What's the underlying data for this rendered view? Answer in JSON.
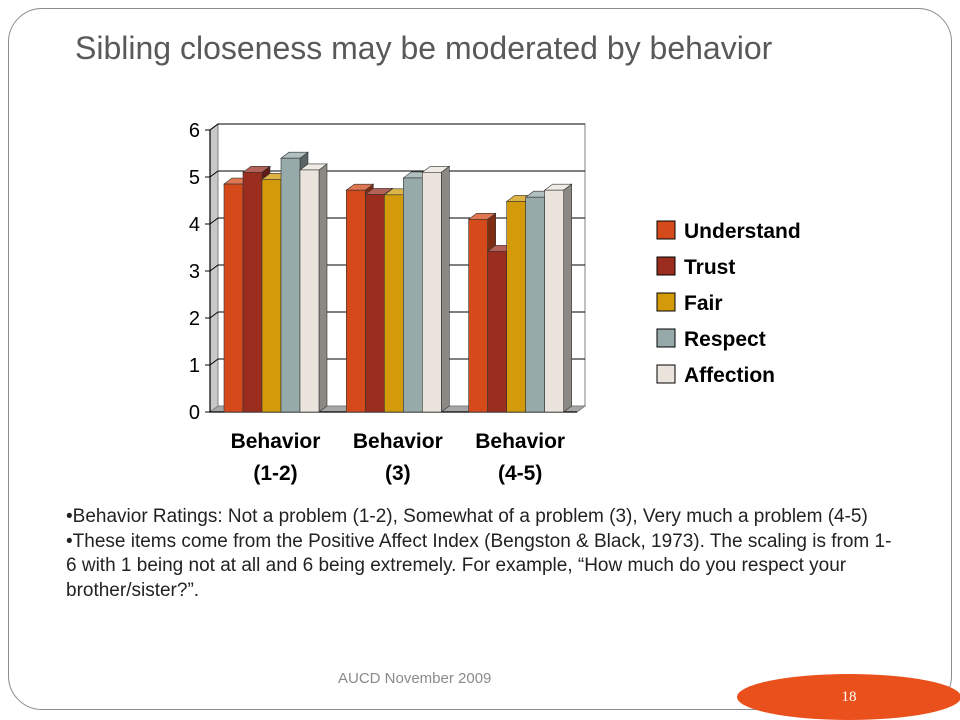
{
  "slide": {
    "title": "Sibling closeness may be moderated by behavior",
    "notes": [
      "•Behavior Ratings: Not a problem (1-2), Somewhat of a problem (3), Very much a problem (4-5)",
      "•These items come from the Positive Affect Index (Bengston & Black, 1973). The scaling is from 1-6 with 1 being not at all and 6 being extremely. For example, “How much do you respect your brother/sister?”."
    ],
    "footer": "AUCD November 2009",
    "page_number": "18",
    "badge_color": "#e9501c"
  },
  "chart_data": {
    "type": "bar",
    "categories": [
      [
        "Behavior",
        "(1-2)"
      ],
      [
        "Behavior",
        "(3)"
      ],
      [
        "Behavior",
        "(4-5)"
      ]
    ],
    "series": [
      {
        "name": "Understand",
        "color": "#d44a1a",
        "values": [
          4.85,
          4.72,
          4.1
        ]
      },
      {
        "name": "Trust",
        "color": "#9b2d1f",
        "values": [
          5.1,
          4.63,
          3.42
        ]
      },
      {
        "name": "Fair",
        "color": "#d39b0a",
        "values": [
          4.95,
          4.62,
          4.48
        ]
      },
      {
        "name": "Respect",
        "color": "#95aaa9",
        "values": [
          5.4,
          4.98,
          4.57
        ]
      },
      {
        "name": "Affection",
        "color": "#eae4dc",
        "values": [
          5.15,
          5.1,
          4.72
        ]
      }
    ],
    "y_ticks": [
      "0",
      "1",
      "2",
      "3",
      "4",
      "5",
      "6"
    ],
    "ylim": [
      0,
      6
    ],
    "grid": true,
    "legend_position": "right",
    "style": "3d-bars"
  }
}
